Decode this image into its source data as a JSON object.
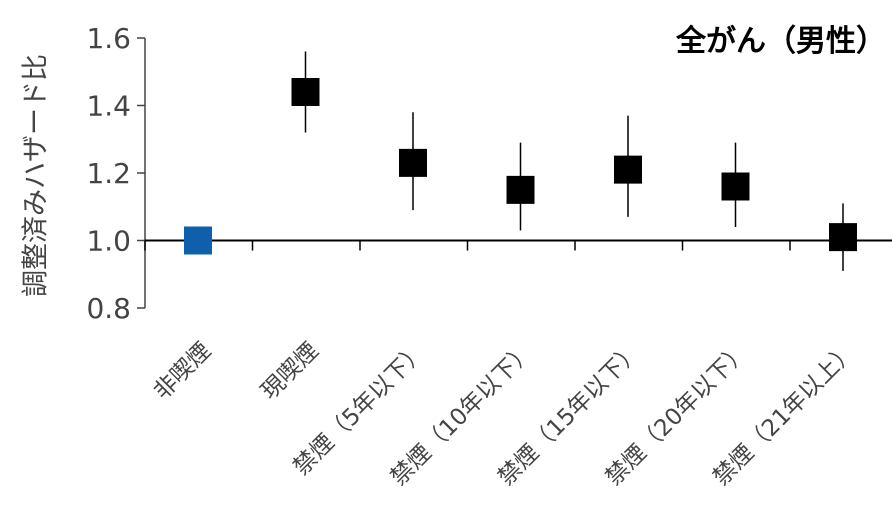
{
  "chart_data": {
    "type": "scatter",
    "title": "全がん（男性）",
    "ylabel": "調整済みハザード比",
    "xlabel": "",
    "ylim": [
      0.8,
      1.6
    ],
    "yticks": [
      "0.8",
      "1.0",
      "1.2",
      "1.4",
      "1.6"
    ],
    "reference_line": 1.0,
    "categories": [
      "非喫煙",
      "現喫煙",
      "禁煙（5年以下）",
      "禁煙（10年以下）",
      "禁煙（15年以下）",
      "禁煙（20年以下）",
      "禁煙（21年以上）"
    ],
    "series": [
      {
        "values": [
          1.0,
          1.44,
          1.23,
          1.15,
          1.21,
          1.16,
          1.01
        ],
        "ci_low": [
          null,
          1.32,
          1.09,
          1.03,
          1.07,
          1.04,
          0.91
        ],
        "ci_high": [
          null,
          1.56,
          1.38,
          1.29,
          1.37,
          1.29,
          1.11
        ],
        "colors": [
          "#0f5fad",
          "#000000",
          "#000000",
          "#000000",
          "#000000",
          "#000000",
          "#000000"
        ]
      }
    ],
    "grid": false,
    "legend": "none"
  }
}
